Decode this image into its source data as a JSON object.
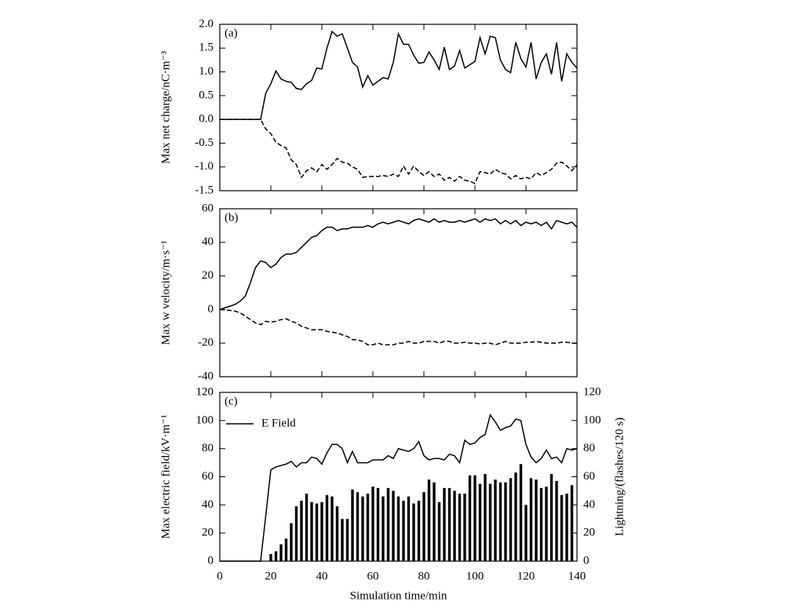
{
  "chart_data": [
    {
      "type": "line",
      "panel_label": "(a)",
      "ylabel": "Max net charge/nC·m⁻³",
      "x": [
        0,
        2,
        4,
        6,
        8,
        10,
        12,
        14,
        16,
        18,
        20,
        22,
        24,
        26,
        28,
        30,
        32,
        34,
        36,
        38,
        40,
        42,
        44,
        46,
        48,
        50,
        52,
        54,
        56,
        58,
        60,
        62,
        64,
        66,
        68,
        70,
        72,
        74,
        76,
        78,
        80,
        82,
        84,
        86,
        88,
        90,
        92,
        94,
        96,
        98,
        100,
        102,
        104,
        106,
        108,
        110,
        112,
        114,
        116,
        118,
        120,
        122,
        124,
        126,
        128,
        130,
        132,
        134,
        136,
        138,
        140
      ],
      "xlim": [
        0,
        140
      ],
      "xticks": [
        0,
        20,
        40,
        60,
        80,
        100,
        120,
        140
      ],
      "ylim": [
        -1.5,
        2.0
      ],
      "yticks": [
        -1.5,
        {
          "value": -1,
          "label": "-1.0"
        },
        -0.5,
        {
          "value": 0,
          "label": "0.0"
        },
        0.5,
        {
          "value": 1,
          "label": "1.0"
        },
        1.5,
        {
          "value": 2,
          "label": "2.0"
        }
      ],
      "series": [
        {
          "color": "#000000",
          "dashed": false,
          "values": [
            0,
            0,
            0,
            0,
            0,
            0,
            0,
            0,
            0,
            0.55,
            0.75,
            1.02,
            0.85,
            0.8,
            0.78,
            0.65,
            0.63,
            0.75,
            0.82,
            1.08,
            1.06,
            1.5,
            1.85,
            1.75,
            1.8,
            1.5,
            1.2,
            1.1,
            0.68,
            0.92,
            0.72,
            0.8,
            0.88,
            0.85,
            1.2,
            1.8,
            1.58,
            1.58,
            1.35,
            1.18,
            1.2,
            1.42,
            1.25,
            1.05,
            1.52,
            1.05,
            1.12,
            1.45,
            1.08,
            1.15,
            1.22,
            1.72,
            1.38,
            1.75,
            1.72,
            1.25,
            1.05,
            0.98,
            1.62,
            1.28,
            1.1,
            1.62,
            0.85,
            1.2,
            1.38,
            0.95,
            1.62,
            0.8,
            1.38,
            1.2,
            1.08
          ]
        },
        {
          "color": "#000000",
          "dashed": true,
          "values": [
            0,
            0,
            0,
            0,
            0,
            0,
            0,
            0,
            0,
            -0.2,
            -0.3,
            -0.48,
            -0.55,
            -0.6,
            -0.85,
            -0.95,
            -1.22,
            -1.08,
            -1.02,
            -1.1,
            -0.95,
            -1.05,
            -0.95,
            -0.82,
            -0.9,
            -0.92,
            -1.0,
            -1.05,
            -1.22,
            -1.2,
            -1.2,
            -1.2,
            -1.18,
            -1.2,
            -1.15,
            -1.2,
            -0.98,
            -1.15,
            -0.98,
            -1.1,
            -1.18,
            -1.1,
            -1.2,
            -1.15,
            -1.28,
            -1.22,
            -1.3,
            -1.2,
            -1.28,
            -1.3,
            -1.35,
            -1.1,
            -1.12,
            -1.15,
            -1.05,
            -1.12,
            -1.15,
            -1.25,
            -1.18,
            -1.25,
            -1.22,
            -1.25,
            -1.12,
            -1.18,
            -1.12,
            -1.05,
            -0.92,
            -0.9,
            -0.98,
            -1.08,
            -0.95
          ]
        }
      ]
    },
    {
      "type": "line",
      "panel_label": "(b)",
      "ylabel": "Max w velocity/m·s⁻¹",
      "x": [
        0,
        2,
        4,
        6,
        8,
        10,
        12,
        14,
        16,
        18,
        20,
        22,
        24,
        26,
        28,
        30,
        32,
        34,
        36,
        38,
        40,
        42,
        44,
        46,
        48,
        50,
        52,
        54,
        56,
        58,
        60,
        62,
        64,
        66,
        68,
        70,
        72,
        74,
        76,
        78,
        80,
        82,
        84,
        86,
        88,
        90,
        92,
        94,
        96,
        98,
        100,
        102,
        104,
        106,
        108,
        110,
        112,
        114,
        116,
        118,
        120,
        122,
        124,
        126,
        128,
        130,
        132,
        134,
        136,
        138,
        140
      ],
      "xlim": [
        0,
        140
      ],
      "xticks": [
        0,
        20,
        40,
        60,
        80,
        100,
        120,
        140
      ],
      "ylim": [
        -40,
        60
      ],
      "yticks": [
        -40,
        -20,
        0,
        20,
        40,
        60
      ],
      "series": [
        {
          "color": "#000000",
          "dashed": false,
          "values": [
            0,
            1,
            2,
            3,
            5,
            8,
            16,
            25,
            29,
            28,
            25,
            27,
            31,
            33,
            33,
            34,
            37,
            40,
            43,
            44,
            47,
            49,
            49,
            47,
            48,
            48,
            49,
            49,
            49,
            50,
            49,
            51,
            52,
            51,
            52,
            53,
            52,
            51,
            53,
            54,
            53,
            52,
            54,
            52,
            53,
            52,
            52,
            53,
            52,
            53,
            54,
            52,
            54,
            53,
            54,
            51,
            53,
            51,
            53,
            50,
            52,
            51,
            52,
            50,
            52,
            48,
            53,
            52,
            51,
            52,
            49
          ]
        },
        {
          "color": "#000000",
          "dashed": true,
          "values": [
            0,
            -0.2,
            -0.5,
            -1,
            -2,
            -4,
            -6,
            -8,
            -9,
            -7,
            -7.5,
            -7,
            -6,
            -5.5,
            -7,
            -8,
            -10,
            -11,
            -12,
            -12,
            -12,
            -13,
            -13.5,
            -14,
            -15,
            -16,
            -18,
            -18,
            -19,
            -21,
            -21,
            -20,
            -21,
            -21,
            -21,
            -20,
            -20,
            -19,
            -20,
            -20,
            -19,
            -19,
            -19,
            -20,
            -19,
            -19,
            -20,
            -20,
            -19.5,
            -20,
            -20,
            -20.5,
            -20,
            -20,
            -21,
            -20,
            -19,
            -20,
            -20,
            -20,
            -19.5,
            -19.5,
            -19,
            -19.5,
            -20,
            -20,
            -20,
            -19.5,
            -19.5,
            -20,
            -20
          ]
        }
      ]
    },
    {
      "type": "line",
      "panel_label": "(c)",
      "ylabel": "Max electric field/kV·m⁻¹",
      "y2label": "Lightning/(flashes/120 s)",
      "xlabel": "Simulation time/min",
      "legend": "upper left",
      "x": [
        0,
        2,
        4,
        6,
        8,
        10,
        12,
        14,
        16,
        18,
        20,
        22,
        24,
        26,
        28,
        30,
        32,
        34,
        36,
        38,
        40,
        42,
        44,
        46,
        48,
        50,
        52,
        54,
        56,
        58,
        60,
        62,
        64,
        66,
        68,
        70,
        72,
        74,
        76,
        78,
        80,
        82,
        84,
        86,
        88,
        90,
        92,
        94,
        96,
        98,
        100,
        102,
        104,
        106,
        108,
        110,
        112,
        114,
        116,
        118,
        120,
        122,
        124,
        126,
        128,
        130,
        132,
        134,
        136,
        138,
        140
      ],
      "xlim": [
        0,
        140
      ],
      "xticks": [
        0,
        20,
        40,
        60,
        80,
        100,
        120,
        140
      ],
      "ylim": [
        0,
        120
      ],
      "yticks": [
        0,
        20,
        40,
        60,
        80,
        100,
        120
      ],
      "y2lim": [
        0,
        120
      ],
      "y2ticks": [
        0,
        20,
        40,
        60,
        80,
        100,
        120
      ],
      "series": [
        {
          "name": "E Field",
          "color": "#000000",
          "dashed": false,
          "values": [
            0,
            0,
            0,
            0,
            0,
            0,
            0,
            0,
            0,
            32,
            65,
            67,
            68,
            69,
            71,
            67,
            70,
            70,
            74,
            73,
            69,
            77,
            83,
            83,
            80,
            70,
            78,
            70,
            70,
            70,
            72,
            72,
            72,
            75,
            73,
            80,
            79,
            78,
            80,
            85,
            75,
            72,
            73,
            73,
            72,
            76,
            75,
            70,
            86,
            83,
            84,
            88,
            90,
            104,
            99,
            93,
            95,
            96,
            101,
            100,
            83,
            74,
            70,
            73,
            79,
            73,
            74,
            70,
            80,
            79,
            80
          ]
        },
        {
          "type": "bar",
          "axis": "y2",
          "color": "#000000",
          "values": [
            null,
            null,
            null,
            null,
            null,
            null,
            null,
            null,
            null,
            null,
            5,
            7,
            12,
            16,
            27,
            39,
            43,
            48,
            42,
            41,
            42,
            47,
            46,
            39,
            30,
            30,
            51,
            49,
            46,
            48,
            53,
            52,
            46,
            52,
            50,
            46,
            43,
            46,
            41,
            43,
            49,
            58,
            56,
            42,
            52,
            52,
            50,
            48,
            48,
            61,
            61,
            55,
            62,
            55,
            58,
            56,
            56,
            59,
            63,
            69,
            40,
            59,
            58,
            52,
            53,
            62,
            57,
            47,
            48,
            54,
            null
          ]
        }
      ]
    }
  ]
}
